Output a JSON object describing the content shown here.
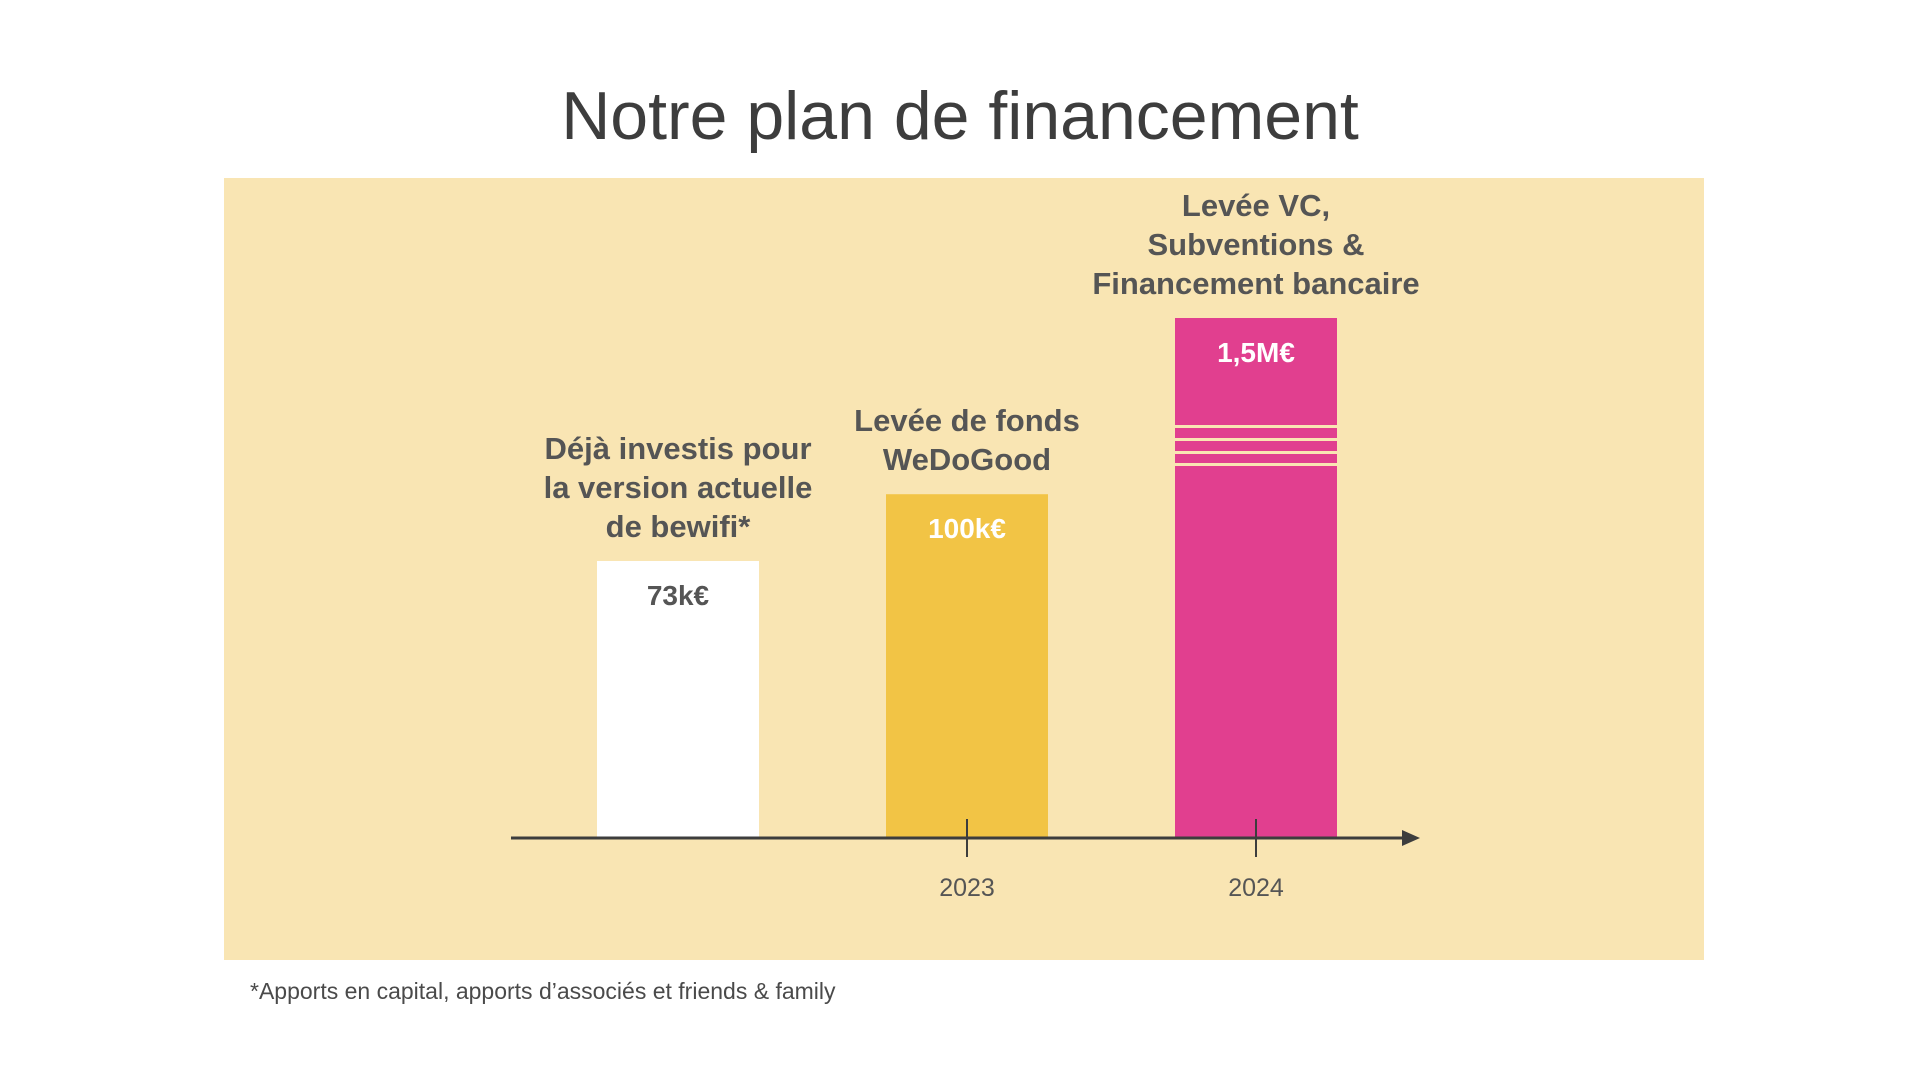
{
  "title": "Notre plan de financement",
  "footnote": "*Apports en capital, apports d’associés et friends & family",
  "colors": {
    "panel": "#f9e5b3",
    "axis": "#3d3d3d",
    "text_dark": "#555555",
    "bar_existing": "#ffffff",
    "bar_2023": "#f2c445",
    "bar_2024": "#e13f8f"
  },
  "chart_data": {
    "type": "bar",
    "title": "",
    "xlabel": "",
    "ylabel": "",
    "categories": [
      "",
      "2023",
      "2024"
    ],
    "values": [
      73,
      100,
      1500
    ],
    "value_labels": [
      "73k€",
      "100k€",
      "1,5M€"
    ],
    "bar_annotations": [
      [
        "Déjà investis pour",
        "la version actuelle",
        "de bewifi*"
      ],
      [
        "Levée de fonds",
        "WeDoGood"
      ],
      [
        "Levée VC,",
        "Subventions &",
        "Financement bancaire"
      ]
    ],
    "unit": "k€",
    "axis_break": "bar 3 (hatched break lines)",
    "grid": false,
    "legend": "none"
  }
}
